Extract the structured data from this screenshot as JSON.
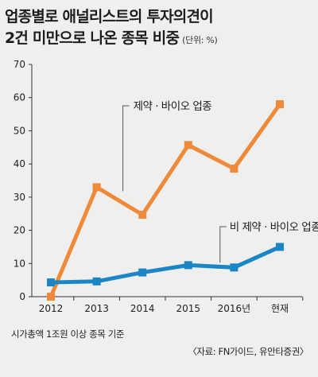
{
  "title": {
    "line1": "업종별로 애널리스트의 투자의견이",
    "line2": "2건 미만으로 나온 종목 비중",
    "unit": "(단위: %)"
  },
  "note": "시가총액 1조원 이상 종목 기준",
  "source": "〈자료: FN가이드, 유안타증권〉",
  "colors": {
    "pharma": "#ee8a3a",
    "non_pharma": "#1b86c6",
    "axis": "#333333",
    "background": "#efefed"
  },
  "chart_data": {
    "type": "line",
    "categories": [
      "2012",
      "2013",
      "2014",
      "2015",
      "2016년",
      "현재"
    ],
    "ylim": [
      0,
      70
    ],
    "yticks": [
      "0",
      "10",
      "20",
      "30",
      "40",
      "50",
      "60",
      "70"
    ],
    "grid": false,
    "series": [
      {
        "name": "제약 · 바이오 업종",
        "color": "#ee8a3a",
        "values": [
          0,
          33,
          24.7,
          45.7,
          38.6,
          58
        ]
      },
      {
        "name": "비 제약 · 바이오 업종",
        "color": "#1b86c6",
        "values": [
          4.3,
          4.6,
          7.3,
          9.5,
          8.8,
          15
        ]
      }
    ]
  }
}
